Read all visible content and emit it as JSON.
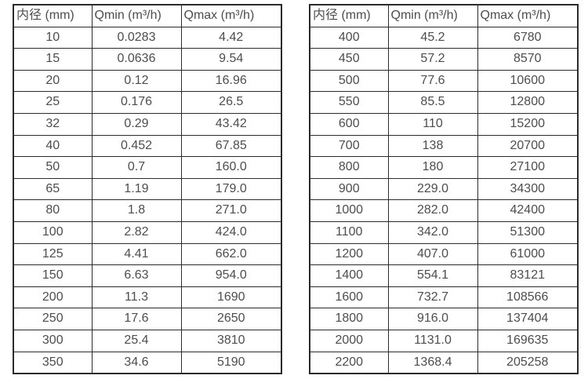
{
  "colors": {
    "background": "#ffffff",
    "border": "#2b2b2b",
    "text": "#4d4d4d"
  },
  "tables": [
    {
      "name": "flow-table-small-diameters",
      "headers": [
        "内径 (mm)",
        "Qmin (m³/h)",
        "Qmax (m³/h)"
      ],
      "rows": [
        [
          "10",
          "0.0283",
          "4.42"
        ],
        [
          "15",
          "0.0636",
          "9.54"
        ],
        [
          "20",
          "0.12",
          "16.96"
        ],
        [
          "25",
          "0.176",
          "26.5"
        ],
        [
          "32",
          "0.29",
          "43.42"
        ],
        [
          "40",
          "0.452",
          "67.85"
        ],
        [
          "50",
          "0.7",
          "160.0"
        ],
        [
          "65",
          "1.19",
          "179.0"
        ],
        [
          "80",
          "1.8",
          "271.0"
        ],
        [
          "100",
          "2.82",
          "424.0"
        ],
        [
          "125",
          "4.41",
          "662.0"
        ],
        [
          "150",
          "6.63",
          "954.0"
        ],
        [
          "200",
          "11.3",
          "1690"
        ],
        [
          "250",
          "17.6",
          "2650"
        ],
        [
          "300",
          "25.4",
          "3810"
        ],
        [
          "350",
          "34.6",
          "5190"
        ]
      ]
    },
    {
      "name": "flow-table-large-diameters",
      "headers": [
        "内径 (mm)",
        "Qmin (m³/h)",
        "Qmax (m³/h)"
      ],
      "rows": [
        [
          "400",
          "45.2",
          "6780"
        ],
        [
          "450",
          "57.2",
          "8570"
        ],
        [
          "500",
          "77.6",
          "10600"
        ],
        [
          "550",
          "85.5",
          "12800"
        ],
        [
          "600",
          "110",
          "15200"
        ],
        [
          "700",
          "138",
          "20700"
        ],
        [
          "800",
          "180",
          "27100"
        ],
        [
          "900",
          "229.0",
          "34300"
        ],
        [
          "1000",
          "282.0",
          "42400"
        ],
        [
          "1100",
          "342.0",
          "51300"
        ],
        [
          "1200",
          "407.0",
          "61000"
        ],
        [
          "1400",
          "554.1",
          "83121"
        ],
        [
          "1600",
          "732.7",
          "108566"
        ],
        [
          "1800",
          "916.0",
          "137404"
        ],
        [
          "2000",
          "1131.0",
          "169635"
        ],
        [
          "2200",
          "1368.4",
          "205258"
        ]
      ]
    }
  ]
}
